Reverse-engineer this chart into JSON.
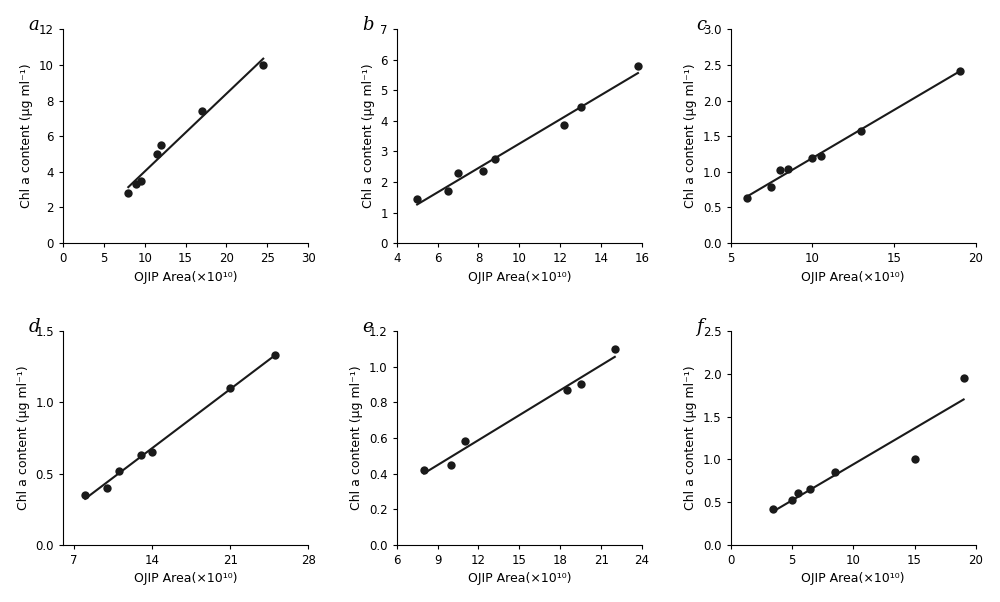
{
  "panels": [
    {
      "label": "a",
      "x": [
        8.0,
        9.0,
        9.5,
        11.5,
        12.0,
        17.0,
        24.5
      ],
      "y": [
        2.8,
        3.3,
        3.5,
        5.0,
        5.5,
        7.4,
        10.0
      ],
      "xlim": [
        0,
        30
      ],
      "ylim": [
        0,
        12
      ],
      "xticks": [
        0,
        5,
        10,
        15,
        20,
        25,
        30
      ],
      "yticks": [
        0,
        2,
        4,
        6,
        8,
        10,
        12
      ],
      "line_xrange": [
        8.0,
        24.5
      ]
    },
    {
      "label": "b",
      "x": [
        5.0,
        6.5,
        7.0,
        8.2,
        8.8,
        12.2,
        13.0,
        15.8
      ],
      "y": [
        1.45,
        1.7,
        2.3,
        2.35,
        2.75,
        3.85,
        4.45,
        5.8
      ],
      "xlim": [
        4,
        16
      ],
      "ylim": [
        0,
        7
      ],
      "xticks": [
        4,
        6,
        8,
        10,
        12,
        14,
        16
      ],
      "yticks": [
        0,
        1,
        2,
        3,
        4,
        5,
        6,
        7
      ],
      "line_xrange": [
        5.0,
        15.8
      ]
    },
    {
      "label": "c",
      "x": [
        6.0,
        7.5,
        8.0,
        8.5,
        10.0,
        10.5,
        13.0,
        19.0
      ],
      "y": [
        0.63,
        0.78,
        1.02,
        1.04,
        1.2,
        1.22,
        1.57,
        2.42
      ],
      "xlim": [
        5,
        20
      ],
      "ylim": [
        0,
        3
      ],
      "xticks": [
        5,
        10,
        15,
        20
      ],
      "yticks": [
        0,
        0.5,
        1.0,
        1.5,
        2.0,
        2.5,
        3.0
      ],
      "line_xrange": [
        6.0,
        19.0
      ]
    },
    {
      "label": "d",
      "x": [
        8.0,
        10.0,
        11.0,
        13.0,
        14.0,
        21.0,
        25.0
      ],
      "y": [
        0.35,
        0.4,
        0.52,
        0.63,
        0.65,
        1.1,
        1.33
      ],
      "xlim": [
        6,
        28
      ],
      "ylim": [
        0,
        1.5
      ],
      "xticks": [
        7,
        14,
        21,
        28
      ],
      "yticks": [
        0,
        0.5,
        1.0,
        1.5
      ],
      "line_xrange": [
        8.0,
        25.0
      ]
    },
    {
      "label": "e",
      "x": [
        8.0,
        10.0,
        11.0,
        18.5,
        19.5,
        22.0
      ],
      "y": [
        0.42,
        0.45,
        0.58,
        0.87,
        0.9,
        1.1
      ],
      "xlim": [
        6,
        24
      ],
      "ylim": [
        0,
        1.2
      ],
      "xticks": [
        6,
        9,
        12,
        15,
        18,
        21,
        24
      ],
      "yticks": [
        0,
        0.2,
        0.4,
        0.6,
        0.8,
        1.0,
        1.2
      ],
      "line_xrange": [
        8.0,
        22.0
      ]
    },
    {
      "label": "f",
      "x": [
        3.5,
        5.0,
        5.5,
        6.5,
        8.5,
        15.0,
        19.0
      ],
      "y": [
        0.42,
        0.52,
        0.6,
        0.65,
        0.85,
        1.0,
        1.95
      ],
      "xlim": [
        0,
        20
      ],
      "ylim": [
        0,
        2.5
      ],
      "xticks": [
        0,
        5,
        10,
        15,
        20
      ],
      "yticks": [
        0,
        0.5,
        1.0,
        1.5,
        2.0,
        2.5
      ],
      "line_xrange": [
        3.5,
        19.0
      ]
    }
  ],
  "ylabel": "Chl a content (μg ml⁻¹)",
  "xlabel": "OJIP Area(×10¹⁰)",
  "marker_color": "#1a1a1a",
  "line_color": "#1a1a1a",
  "marker_size": 6,
  "line_width": 1.5,
  "font_size": 9,
  "label_font_size": 13,
  "tick_fontsize": 8.5
}
